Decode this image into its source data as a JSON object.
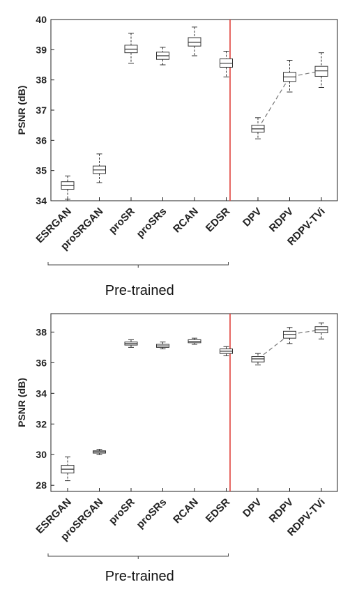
{
  "chart_data": [
    {
      "type": "box",
      "ylabel": "PSNR (dB)",
      "ylim": [
        34,
        40
      ],
      "yticks": [
        34,
        35,
        36,
        37,
        38,
        39,
        40
      ],
      "categories": [
        "ESRGAN",
        "proSRGAN",
        "proSR",
        "proSRs",
        "RCAN",
        "EDSR",
        "DPV",
        "RDPV",
        "RDPV-TVi"
      ],
      "boxes": [
        {
          "whisker_low": 34.05,
          "q1": 34.38,
          "median": 34.5,
          "q3": 34.63,
          "whisker_high": 34.82
        },
        {
          "whisker_low": 34.6,
          "q1": 34.9,
          "median": 35.02,
          "q3": 35.15,
          "whisker_high": 35.55
        },
        {
          "whisker_low": 38.55,
          "q1": 38.9,
          "median": 39.02,
          "q3": 39.15,
          "whisker_high": 39.55
        },
        {
          "whisker_low": 38.5,
          "q1": 38.68,
          "median": 38.8,
          "q3": 38.92,
          "whisker_high": 39.08
        },
        {
          "whisker_low": 38.8,
          "q1": 39.12,
          "median": 39.25,
          "q3": 39.4,
          "whisker_high": 39.75
        },
        {
          "whisker_low": 38.1,
          "q1": 38.42,
          "median": 38.55,
          "q3": 38.7,
          "whisker_high": 38.95
        },
        {
          "whisker_low": 36.05,
          "q1": 36.27,
          "median": 36.38,
          "q3": 36.5,
          "whisker_high": 36.75
        },
        {
          "whisker_low": 37.6,
          "q1": 37.95,
          "median": 38.1,
          "q3": 38.25,
          "whisker_high": 38.65
        },
        {
          "whisker_low": 37.75,
          "q1": 38.12,
          "median": 38.3,
          "q3": 38.45,
          "whisker_high": 38.9
        }
      ],
      "dashed_trend": [
        "DPV",
        "RDPV",
        "RDPV-TVi"
      ],
      "separator_after": "EDSR",
      "group_label": "Pre-trained",
      "group_members": [
        "ESRGAN",
        "proSRGAN",
        "proSR",
        "proSRs",
        "RCAN",
        "EDSR"
      ],
      "grid": false
    },
    {
      "type": "box",
      "ylabel": "PSNR (dB)",
      "ylim": [
        27.6,
        39.2
      ],
      "yticks": [
        28,
        30,
        32,
        34,
        36,
        38
      ],
      "categories": [
        "ESRGAN",
        "proSRGAN",
        "proSR",
        "proSRs",
        "RCAN",
        "EDSR",
        "DPV",
        "RDPV",
        "RDPV-TVi"
      ],
      "boxes": [
        {
          "whisker_low": 28.3,
          "q1": 28.8,
          "median": 29.05,
          "q3": 29.3,
          "whisker_high": 29.85
        },
        {
          "whisker_low": 30.0,
          "q1": 30.1,
          "median": 30.18,
          "q3": 30.25,
          "whisker_high": 30.35
        },
        {
          "whisker_low": 37.0,
          "q1": 37.15,
          "median": 37.25,
          "q3": 37.35,
          "whisker_high": 37.5
        },
        {
          "whisker_low": 36.9,
          "q1": 37.0,
          "median": 37.1,
          "q3": 37.2,
          "whisker_high": 37.35
        },
        {
          "whisker_low": 37.2,
          "q1": 37.3,
          "median": 37.4,
          "q3": 37.5,
          "whisker_high": 37.6
        },
        {
          "whisker_low": 36.45,
          "q1": 36.6,
          "median": 36.75,
          "q3": 36.9,
          "whisker_high": 37.05
        },
        {
          "whisker_low": 35.85,
          "q1": 36.05,
          "median": 36.25,
          "q3": 36.4,
          "whisker_high": 36.6
        },
        {
          "whisker_low": 37.25,
          "q1": 37.6,
          "median": 37.85,
          "q3": 38.05,
          "whisker_high": 38.3
        },
        {
          "whisker_low": 37.55,
          "q1": 37.95,
          "median": 38.15,
          "q3": 38.35,
          "whisker_high": 38.6
        }
      ],
      "dashed_trend": [
        "DPV",
        "RDPV",
        "RDPV-TVi"
      ],
      "separator_after": "EDSR",
      "group_label": "Pre-trained",
      "group_members": [
        "ESRGAN",
        "proSRGAN",
        "proSR",
        "proSRs",
        "RCAN",
        "EDSR"
      ],
      "grid": false
    }
  ]
}
